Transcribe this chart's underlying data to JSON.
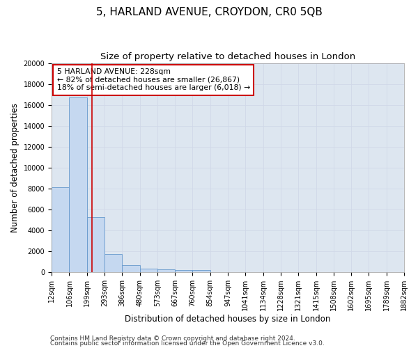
{
  "title1": "5, HARLAND AVENUE, CROYDON, CR0 5QB",
  "title2": "Size of property relative to detached houses in London",
  "xlabel": "Distribution of detached houses by size in London",
  "ylabel": "Number of detached properties",
  "footnote1": "Contains HM Land Registry data © Crown copyright and database right 2024.",
  "footnote2": "Contains public sector information licensed under the Open Government Licence v3.0.",
  "annotation_line1": "5 HARLAND AVENUE: 228sqm",
  "annotation_line2": "← 82% of detached houses are smaller (26,867)",
  "annotation_line3": "18% of semi-detached houses are larger (6,018) →",
  "property_size": 228,
  "bin_edges": [
    12,
    106,
    199,
    293,
    386,
    480,
    573,
    667,
    760,
    854,
    947,
    1041,
    1134,
    1228,
    1321,
    1415,
    1508,
    1602,
    1695,
    1789,
    1882
  ],
  "bin_labels": [
    "12sqm",
    "106sqm",
    "199sqm",
    "293sqm",
    "386sqm",
    "480sqm",
    "573sqm",
    "667sqm",
    "760sqm",
    "854sqm",
    "947sqm",
    "1041sqm",
    "1134sqm",
    "1228sqm",
    "1321sqm",
    "1415sqm",
    "1508sqm",
    "1602sqm",
    "1695sqm",
    "1789sqm",
    "1882sqm"
  ],
  "bar_heights": [
    8100,
    16700,
    5300,
    1750,
    680,
    330,
    270,
    200,
    200,
    0,
    0,
    0,
    0,
    0,
    0,
    0,
    0,
    0,
    0,
    0
  ],
  "bar_color": "#c5d8f0",
  "bar_edge_color": "#6699cc",
  "vline_color": "#cc0000",
  "vline_x": 228,
  "ylim": [
    0,
    20000
  ],
  "yticks": [
    0,
    2000,
    4000,
    6000,
    8000,
    10000,
    12000,
    14000,
    16000,
    18000,
    20000
  ],
  "grid_color": "#d0d8e8",
  "bg_color": "#dde6f0",
  "annotation_box_color": "#cc0000",
  "title1_fontsize": 11,
  "title2_fontsize": 9.5,
  "axis_label_fontsize": 8.5,
  "tick_fontsize": 7,
  "footnote_fontsize": 6.5
}
